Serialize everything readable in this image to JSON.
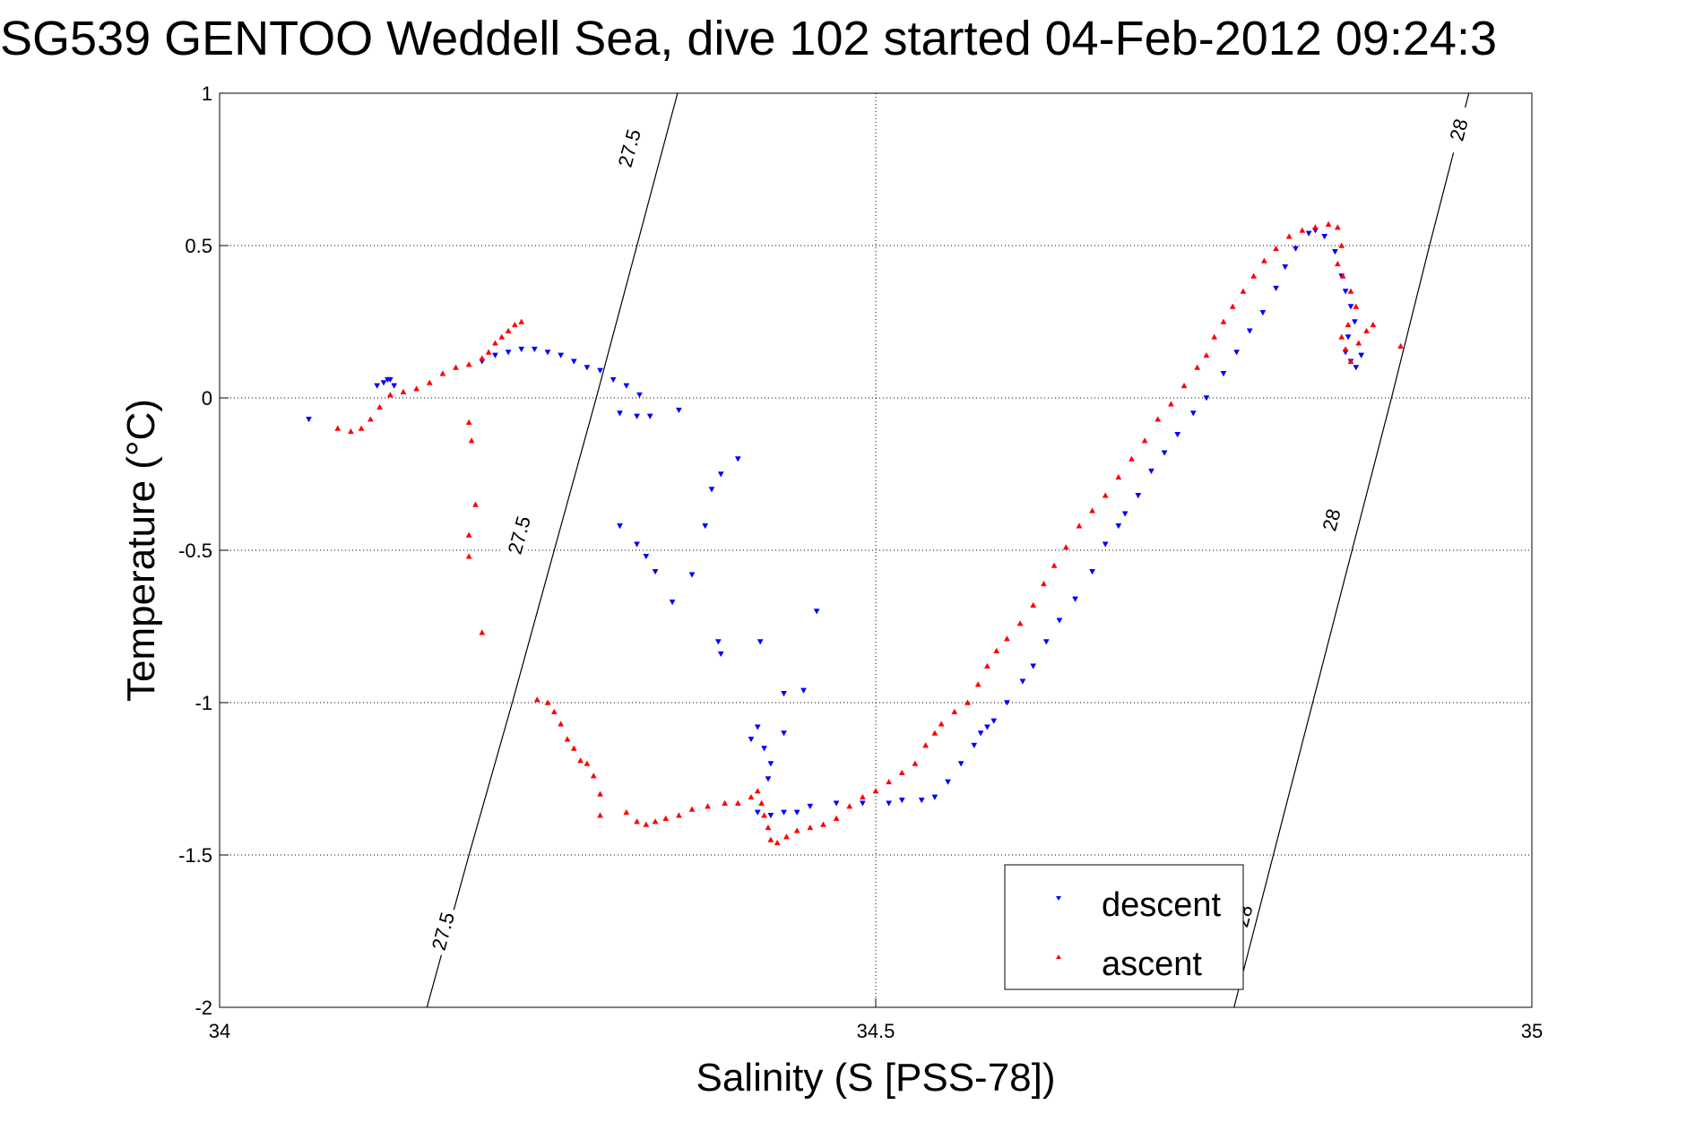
{
  "chart_data": {
    "type": "scatter",
    "title": "SG539 GENTOO Weddell Sea, dive 102 started 04-Feb-2012 09:24:3",
    "xlabel": "Salinity (S [PSS-78])",
    "ylabel": "Temperature (°C)",
    "xlim": [
      34,
      35
    ],
    "ylim": [
      -2,
      1
    ],
    "x_ticks": [
      34,
      34.5,
      35
    ],
    "x_tick_labels": [
      "34",
      "34.5",
      "35"
    ],
    "y_ticks": [
      -2,
      -1.5,
      -1,
      -0.5,
      0,
      0.5,
      1
    ],
    "y_tick_labels": [
      "-2",
      "-1.5",
      "-1",
      "-0.5",
      "0",
      "0.5",
      "1"
    ],
    "grid": true,
    "legend_position": "bottom-right",
    "contour_label_values": [
      "27.5",
      "28"
    ],
    "contours": [
      {
        "label": "27.5",
        "color": "#000000",
        "points": [
          [
            34.158,
            -2
          ],
          [
            34.19,
            -1.5
          ],
          [
            34.223,
            -1
          ],
          [
            34.255,
            -0.5
          ],
          [
            34.287,
            0
          ],
          [
            34.318,
            0.5
          ],
          [
            34.349,
            1
          ]
        ],
        "label_positions": [
          [
            34.17,
            -1.75
          ],
          [
            34.228,
            -0.45
          ],
          [
            34.312,
            0.82
          ]
        ]
      },
      {
        "label": "28",
        "color": "#000000",
        "points": [
          [
            34.773,
            -2
          ],
          [
            34.803,
            -1.5
          ],
          [
            34.833,
            -1
          ],
          [
            34.863,
            -0.5
          ],
          [
            34.893,
            0
          ],
          [
            34.922,
            0.5
          ],
          [
            34.952,
            1
          ]
        ],
        "label_positions": [
          [
            34.78,
            -1.7
          ],
          [
            34.847,
            -0.4
          ],
          [
            34.944,
            0.88
          ]
        ]
      }
    ],
    "series": [
      {
        "name": "descent",
        "color": "#0000ff",
        "marker": "triangle-down",
        "points": [
          [
            34.068,
            -0.07
          ],
          [
            34.12,
            0.04
          ],
          [
            34.125,
            0.05
          ],
          [
            34.13,
            0.06
          ],
          [
            34.133,
            0.04
          ],
          [
            34.128,
            0.06
          ],
          [
            34.2,
            0.12
          ],
          [
            34.21,
            0.14
          ],
          [
            34.22,
            0.15
          ],
          [
            34.23,
            0.16
          ],
          [
            34.24,
            0.16
          ],
          [
            34.25,
            0.15
          ],
          [
            34.26,
            0.14
          ],
          [
            34.27,
            0.12
          ],
          [
            34.28,
            0.1
          ],
          [
            34.29,
            0.09
          ],
          [
            34.3,
            0.06
          ],
          [
            34.31,
            0.04
          ],
          [
            34.32,
            0.01
          ],
          [
            34.305,
            -0.05
          ],
          [
            34.318,
            -0.06
          ],
          [
            34.328,
            -0.06
          ],
          [
            34.35,
            -0.04
          ],
          [
            34.305,
            -0.42
          ],
          [
            34.318,
            -0.48
          ],
          [
            34.325,
            -0.52
          ],
          [
            34.332,
            -0.57
          ],
          [
            34.345,
            -0.67
          ],
          [
            34.36,
            -0.58
          ],
          [
            34.37,
            -0.42
          ],
          [
            34.375,
            -0.3
          ],
          [
            34.382,
            -0.25
          ],
          [
            34.395,
            -0.2
          ],
          [
            34.38,
            -0.8
          ],
          [
            34.382,
            -0.84
          ],
          [
            34.412,
            -0.8
          ],
          [
            34.43,
            -0.97
          ],
          [
            34.445,
            -0.96
          ],
          [
            34.455,
            -0.7
          ],
          [
            34.405,
            -1.12
          ],
          [
            34.41,
            -1.08
          ],
          [
            34.415,
            -1.15
          ],
          [
            34.42,
            -1.2
          ],
          [
            34.418,
            -1.25
          ],
          [
            34.43,
            -1.1
          ],
          [
            34.41,
            -1.36
          ],
          [
            34.42,
            -1.37
          ],
          [
            34.43,
            -1.36
          ],
          [
            34.44,
            -1.36
          ],
          [
            34.45,
            -1.34
          ],
          [
            34.47,
            -1.33
          ],
          [
            34.49,
            -1.33
          ],
          [
            34.51,
            -1.33
          ],
          [
            34.52,
            -1.32
          ],
          [
            34.535,
            -1.32
          ],
          [
            34.545,
            -1.31
          ],
          [
            34.555,
            -1.26
          ],
          [
            34.565,
            -1.2
          ],
          [
            34.575,
            -1.14
          ],
          [
            34.58,
            -1.1
          ],
          [
            34.585,
            -1.08
          ],
          [
            34.59,
            -1.06
          ],
          [
            34.6,
            -1.0
          ],
          [
            34.612,
            -0.93
          ],
          [
            34.62,
            -0.88
          ],
          [
            34.63,
            -0.8
          ],
          [
            34.64,
            -0.73
          ],
          [
            34.652,
            -0.66
          ],
          [
            34.665,
            -0.57
          ],
          [
            34.675,
            -0.48
          ],
          [
            34.685,
            -0.42
          ],
          [
            34.69,
            -0.38
          ],
          [
            34.7,
            -0.32
          ],
          [
            34.71,
            -0.24
          ],
          [
            34.72,
            -0.18
          ],
          [
            34.73,
            -0.12
          ],
          [
            34.742,
            -0.05
          ],
          [
            34.752,
            0.0
          ],
          [
            34.765,
            0.08
          ],
          [
            34.775,
            0.15
          ],
          [
            34.785,
            0.22
          ],
          [
            34.795,
            0.28
          ],
          [
            34.805,
            0.36
          ],
          [
            34.812,
            0.43
          ],
          [
            34.82,
            0.49
          ],
          [
            34.83,
            0.54
          ],
          [
            34.835,
            0.55
          ],
          [
            34.842,
            0.53
          ],
          [
            34.85,
            0.48
          ],
          [
            34.855,
            0.4
          ],
          [
            34.858,
            0.35
          ],
          [
            34.862,
            0.3
          ],
          [
            34.865,
            0.25
          ],
          [
            34.86,
            0.2
          ],
          [
            34.858,
            0.15
          ],
          [
            34.862,
            0.12
          ],
          [
            34.866,
            0.1
          ],
          [
            34.87,
            0.14
          ]
        ]
      },
      {
        "name": "ascent",
        "color": "#ff0000",
        "marker": "triangle-up",
        "points": [
          [
            34.09,
            -0.1
          ],
          [
            34.1,
            -0.11
          ],
          [
            34.108,
            -0.1
          ],
          [
            34.115,
            -0.07
          ],
          [
            34.122,
            -0.03
          ],
          [
            34.13,
            0.01
          ],
          [
            34.14,
            0.02
          ],
          [
            34.15,
            0.03
          ],
          [
            34.16,
            0.05
          ],
          [
            34.17,
            0.08
          ],
          [
            34.18,
            0.1
          ],
          [
            34.19,
            0.11
          ],
          [
            34.2,
            0.13
          ],
          [
            34.205,
            0.15
          ],
          [
            34.21,
            0.18
          ],
          [
            34.215,
            0.2
          ],
          [
            34.22,
            0.22
          ],
          [
            34.225,
            0.24
          ],
          [
            34.23,
            0.25
          ],
          [
            34.19,
            -0.08
          ],
          [
            34.192,
            -0.14
          ],
          [
            34.195,
            -0.35
          ],
          [
            34.19,
            -0.45
          ],
          [
            34.19,
            -0.52
          ],
          [
            34.2,
            -0.77
          ],
          [
            34.242,
            -0.99
          ],
          [
            34.25,
            -1.0
          ],
          [
            34.255,
            -1.03
          ],
          [
            34.26,
            -1.07
          ],
          [
            34.265,
            -1.12
          ],
          [
            34.27,
            -1.15
          ],
          [
            34.275,
            -1.19
          ],
          [
            34.28,
            -1.2
          ],
          [
            34.285,
            -1.24
          ],
          [
            34.29,
            -1.3
          ],
          [
            34.29,
            -1.37
          ],
          [
            34.31,
            -1.36
          ],
          [
            34.318,
            -1.39
          ],
          [
            34.325,
            -1.4
          ],
          [
            34.332,
            -1.39
          ],
          [
            34.34,
            -1.38
          ],
          [
            34.35,
            -1.37
          ],
          [
            34.36,
            -1.35
          ],
          [
            34.372,
            -1.34
          ],
          [
            34.385,
            -1.33
          ],
          [
            34.395,
            -1.33
          ],
          [
            34.405,
            -1.31
          ],
          [
            34.41,
            -1.29
          ],
          [
            34.413,
            -1.33
          ],
          [
            34.415,
            -1.37
          ],
          [
            34.418,
            -1.41
          ],
          [
            34.42,
            -1.45
          ],
          [
            34.425,
            -1.46
          ],
          [
            34.432,
            -1.44
          ],
          [
            34.44,
            -1.42
          ],
          [
            34.45,
            -1.41
          ],
          [
            34.46,
            -1.4
          ],
          [
            34.47,
            -1.38
          ],
          [
            34.48,
            -1.34
          ],
          [
            34.49,
            -1.31
          ],
          [
            34.5,
            -1.29
          ],
          [
            34.51,
            -1.26
          ],
          [
            34.52,
            -1.23
          ],
          [
            34.53,
            -1.2
          ],
          [
            34.538,
            -1.14
          ],
          [
            34.545,
            -1.1
          ],
          [
            34.55,
            -1.07
          ],
          [
            34.56,
            -1.03
          ],
          [
            34.57,
            -1.0
          ],
          [
            34.578,
            -0.94
          ],
          [
            34.585,
            -0.88
          ],
          [
            34.592,
            -0.83
          ],
          [
            34.6,
            -0.79
          ],
          [
            34.61,
            -0.74
          ],
          [
            34.62,
            -0.68
          ],
          [
            34.628,
            -0.61
          ],
          [
            34.636,
            -0.55
          ],
          [
            34.645,
            -0.49
          ],
          [
            34.655,
            -0.42
          ],
          [
            34.665,
            -0.37
          ],
          [
            34.675,
            -0.32
          ],
          [
            34.685,
            -0.26
          ],
          [
            34.695,
            -0.2
          ],
          [
            34.705,
            -0.14
          ],
          [
            34.715,
            -0.07
          ],
          [
            34.725,
            -0.02
          ],
          [
            34.735,
            0.04
          ],
          [
            34.745,
            0.1
          ],
          [
            34.752,
            0.14
          ],
          [
            34.758,
            0.2
          ],
          [
            34.765,
            0.25
          ],
          [
            34.772,
            0.3
          ],
          [
            34.78,
            0.35
          ],
          [
            34.788,
            0.4
          ],
          [
            34.796,
            0.45
          ],
          [
            34.805,
            0.49
          ],
          [
            34.815,
            0.53
          ],
          [
            34.825,
            0.55
          ],
          [
            34.835,
            0.56
          ],
          [
            34.845,
            0.57
          ],
          [
            34.852,
            0.56
          ],
          [
            34.855,
            0.5
          ],
          [
            34.852,
            0.44
          ],
          [
            34.856,
            0.4
          ],
          [
            34.862,
            0.35
          ],
          [
            34.866,
            0.3
          ],
          [
            34.86,
            0.24
          ],
          [
            34.855,
            0.2
          ],
          [
            34.858,
            0.16
          ],
          [
            34.862,
            0.12
          ],
          [
            34.868,
            0.18
          ],
          [
            34.874,
            0.22
          ],
          [
            34.879,
            0.24
          ],
          [
            34.9,
            0.17
          ]
        ]
      }
    ]
  }
}
